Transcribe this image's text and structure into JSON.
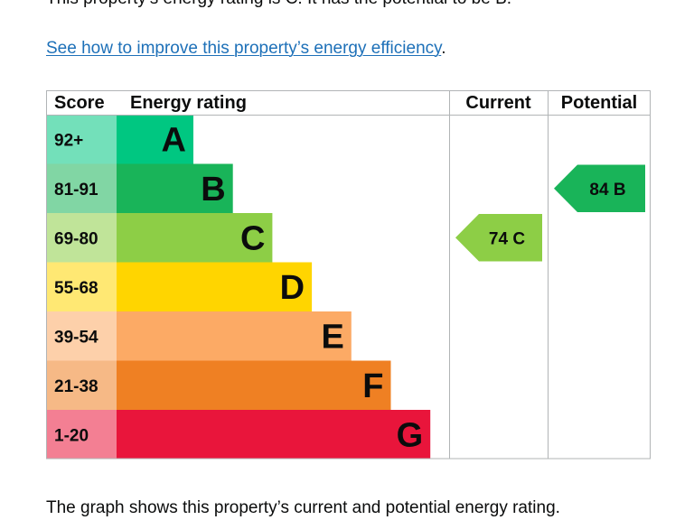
{
  "intro_text": "This property’s energy rating is C. It has the potential to be B.",
  "improve_link": {
    "text": "See how to improve this property’s energy efficiency",
    "suffix": "."
  },
  "caption": "The graph shows this property’s current and potential energy rating.",
  "chart_data": {
    "type": "bar",
    "headers": {
      "score": "Score",
      "rating": "Energy rating",
      "current": "Current",
      "potential": "Potential"
    },
    "bands": [
      {
        "letter": "A",
        "range": "92+",
        "color": "#00c781"
      },
      {
        "letter": "B",
        "range": "81-91",
        "color": "#19b459"
      },
      {
        "letter": "C",
        "range": "69-80",
        "color": "#8dce46"
      },
      {
        "letter": "D",
        "range": "55-68",
        "color": "#ffd500"
      },
      {
        "letter": "E",
        "range": "39-54",
        "color": "#fcaa65"
      },
      {
        "letter": "F",
        "range": "21-38",
        "color": "#ef8023"
      },
      {
        "letter": "G",
        "range": "1-20",
        "color": "#e9153b"
      }
    ],
    "current": {
      "score": 74,
      "band": "C",
      "label": "74  C"
    },
    "potential": {
      "score": 84,
      "band": "B",
      "label": "84  B"
    }
  }
}
